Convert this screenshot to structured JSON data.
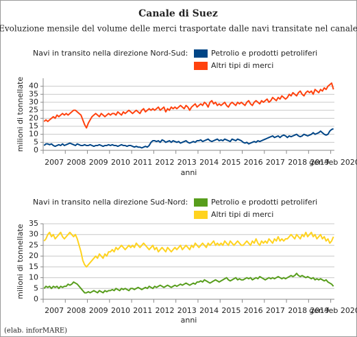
{
  "header": {
    "title": "Canale di Suez",
    "subtitle": "Evoluzione mensile del volume delle merci trasportate dalle navi transitate nel canale",
    "note": "(elab. inforMARE)"
  },
  "chart_data": [
    {
      "type": "line",
      "legend_title": "Navi in transito nella direzione Nord-Sud:",
      "xlabel": "anni",
      "ylabel": "milioni di tonnellate",
      "categories": [
        null,
        null,
        null,
        null,
        null,
        "2007",
        null,
        null,
        null,
        null,
        null,
        null,
        null,
        null,
        null,
        null,
        null,
        "2008",
        null,
        null,
        null,
        null,
        null,
        null,
        null,
        null,
        null,
        null,
        null,
        "2009",
        null,
        null,
        null,
        null,
        null,
        null,
        null,
        null,
        null,
        null,
        null,
        "2010",
        null,
        null,
        null,
        null,
        null,
        null,
        null,
        null,
        null,
        null,
        null,
        "2011",
        null,
        null,
        null,
        null,
        null,
        null,
        null,
        null,
        null,
        null,
        null,
        "2012",
        null,
        null,
        null,
        null,
        null,
        null,
        null,
        null,
        null,
        null,
        null,
        "2013",
        null,
        null,
        null,
        null,
        null,
        null,
        null,
        null,
        null,
        null,
        null,
        "2014",
        null,
        null,
        null,
        null,
        null,
        null,
        null,
        null,
        null,
        null,
        null,
        "2015",
        null,
        null,
        null,
        null,
        null,
        null,
        null,
        null,
        null,
        null,
        null,
        "2016",
        null,
        null,
        null,
        null,
        null,
        null,
        null,
        null,
        null,
        null,
        null,
        "2017",
        null,
        null,
        null,
        null,
        null,
        null,
        null,
        null,
        null,
        null,
        null,
        "2018",
        null,
        null,
        null,
        null,
        null,
        null,
        null,
        null,
        null,
        null,
        null,
        "2019",
        null,
        null,
        null,
        null,
        null,
        null,
        null,
        "gen-feb 2020"
      ],
      "ylim": [
        0,
        45
      ],
      "yticks": [
        0,
        5,
        10,
        15,
        20,
        25,
        30,
        35,
        40
      ],
      "grid": true,
      "series": [
        {
          "name": "Petrolio e prodotti petroliferi",
          "color": "#004586",
          "values": [
            3,
            4,
            4,
            3.5,
            4,
            3,
            2.5,
            3,
            3.5,
            3,
            4,
            3,
            3.5,
            4,
            4.5,
            4,
            3.5,
            3,
            4,
            3.5,
            3,
            3,
            3.5,
            3,
            3,
            3.5,
            3,
            2.5,
            3,
            3,
            3.5,
            3,
            2.5,
            3,
            3,
            3.5,
            3,
            3.5,
            3,
            3,
            2.5,
            3,
            3.5,
            3,
            3,
            2.5,
            3,
            3,
            2.5,
            2,
            2.5,
            2,
            2,
            1.5,
            2,
            2.5,
            2,
            3,
            5,
            6,
            6,
            5.5,
            6,
            5,
            6.5,
            6,
            5,
            5.5,
            6,
            5,
            6,
            5.5,
            5,
            5.5,
            4.5,
            5,
            5.5,
            6,
            5,
            4.5,
            5,
            5.5,
            5,
            6,
            6,
            6.5,
            5.5,
            6,
            6.5,
            7,
            6,
            5.5,
            6,
            6.5,
            7,
            6,
            6.5,
            6,
            7,
            6.5,
            6,
            5.5,
            7,
            6.5,
            6,
            7,
            6.5,
            6,
            5,
            4.5,
            5,
            4,
            4.5,
            5,
            5.5,
            5,
            6,
            5.5,
            6,
            6.5,
            7,
            7.5,
            8,
            8.5,
            9,
            8,
            8.5,
            9,
            8,
            9,
            9.5,
            9,
            8,
            9,
            8.5,
            9,
            9.5,
            10,
            9,
            8.5,
            9,
            10,
            9.5,
            9,
            9.5,
            10,
            11,
            10,
            10.5,
            11,
            12,
            11,
            10,
            9.5,
            10,
            12,
            13,
            13.5
          ]
        },
        {
          "name": "Altri tipi di merci",
          "color": "#ff420e",
          "values": [
            18,
            19,
            18,
            19,
            20,
            21,
            20,
            22,
            21,
            22,
            23,
            22,
            23,
            22,
            23,
            24,
            25,
            25,
            24,
            23,
            22,
            19,
            16,
            14,
            17,
            19,
            21,
            22,
            23,
            22,
            21,
            23,
            22,
            21,
            22,
            23,
            22,
            23,
            23,
            22,
            24,
            23,
            22,
            24,
            23,
            24,
            25,
            24,
            23,
            24,
            25,
            24,
            23,
            25,
            26,
            24,
            25,
            26,
            25,
            26,
            25,
            26,
            27,
            25,
            26,
            27,
            24,
            26,
            25,
            27,
            26,
            27,
            26,
            27,
            28,
            27,
            26,
            28,
            27,
            25,
            27,
            28,
            29,
            27,
            28,
            29,
            28,
            30,
            29,
            27,
            30,
            31,
            29,
            30,
            28,
            29,
            28,
            29,
            30,
            28,
            27,
            29,
            30,
            29,
            28,
            30,
            29,
            30,
            29,
            28,
            30,
            31,
            29,
            28,
            30,
            31,
            30,
            29,
            31,
            30,
            31,
            32,
            30,
            31,
            33,
            32,
            31,
            33,
            32,
            34,
            33,
            32,
            33,
            35,
            34,
            36,
            35,
            34,
            36,
            37,
            35,
            34,
            36,
            37,
            36,
            37,
            35,
            38,
            37,
            36,
            38,
            37,
            39,
            38,
            40,
            41,
            42,
            38
          ]
        }
      ]
    },
    {
      "type": "line",
      "legend_title": "Navi in transito nella direzione Sud-Nord:",
      "xlabel": "anni",
      "ylabel": "milioni di tonnellate",
      "categories": [
        null,
        null,
        null,
        null,
        null,
        "2007",
        null,
        null,
        null,
        null,
        null,
        null,
        null,
        null,
        null,
        null,
        null,
        "2008",
        null,
        null,
        null,
        null,
        null,
        null,
        null,
        null,
        null,
        null,
        null,
        "2009",
        null,
        null,
        null,
        null,
        null,
        null,
        null,
        null,
        null,
        null,
        null,
        "2010",
        null,
        null,
        null,
        null,
        null,
        null,
        null,
        null,
        null,
        null,
        null,
        "2011",
        null,
        null,
        null,
        null,
        null,
        null,
        null,
        null,
        null,
        null,
        null,
        "2012",
        null,
        null,
        null,
        null,
        null,
        null,
        null,
        null,
        null,
        null,
        null,
        "2013",
        null,
        null,
        null,
        null,
        null,
        null,
        null,
        null,
        null,
        null,
        null,
        "2014",
        null,
        null,
        null,
        null,
        null,
        null,
        null,
        null,
        null,
        null,
        null,
        "2015",
        null,
        null,
        null,
        null,
        null,
        null,
        null,
        null,
        null,
        null,
        null,
        "2016",
        null,
        null,
        null,
        null,
        null,
        null,
        null,
        null,
        null,
        null,
        null,
        "2017",
        null,
        null,
        null,
        null,
        null,
        null,
        null,
        null,
        null,
        null,
        null,
        "2018",
        null,
        null,
        null,
        null,
        null,
        null,
        null,
        null,
        null,
        null,
        null,
        "2019",
        null,
        null,
        null,
        null,
        null,
        null,
        null,
        "gen-feb 2020"
      ],
      "ylim": [
        0,
        35
      ],
      "yticks": [
        0,
        5,
        10,
        15,
        20,
        25,
        30,
        35
      ],
      "grid": true,
      "series": [
        {
          "name": "Petrolio e prodotti petroliferi",
          "color": "#579d1c",
          "values": [
            5,
            6,
            5.5,
            6,
            5,
            6,
            5.5,
            6,
            5,
            6,
            5.5,
            6,
            6,
            7,
            6.5,
            7,
            8,
            7.5,
            7,
            6,
            5,
            4,
            3,
            3,
            3.5,
            3,
            3.5,
            4,
            3.5,
            3,
            4,
            3.5,
            3,
            4,
            3.5,
            4,
            4,
            4.5,
            4,
            5,
            4.5,
            4,
            5,
            4.5,
            5,
            4.5,
            4,
            5,
            5,
            4.5,
            5,
            5.5,
            5,
            4.5,
            5,
            5.5,
            5,
            6,
            5.5,
            5,
            6,
            5.5,
            6,
            6.5,
            6,
            5.5,
            6,
            6.5,
            6,
            5.5,
            6,
            6.5,
            6,
            6.5,
            7,
            6.5,
            7,
            7.5,
            7,
            6.5,
            7,
            7.5,
            7,
            8,
            8,
            8.5,
            8,
            9,
            8.5,
            8,
            7.5,
            8,
            8.5,
            9,
            8.5,
            8,
            8.5,
            9,
            9.5,
            10,
            9,
            8.5,
            9,
            9.5,
            10,
            9,
            9.5,
            9,
            9,
            9.5,
            10,
            9.5,
            10,
            9,
            9.5,
            10,
            9.5,
            10.5,
            10,
            9.5,
            9,
            9.5,
            10,
            9.5,
            10,
            9.5,
            10,
            10.5,
            10,
            9.5,
            10,
            9.5,
            10,
            10.5,
            11,
            10.5,
            11,
            12,
            11,
            10.5,
            11,
            10.5,
            10,
            10.5,
            10,
            9.5,
            10,
            9,
            9.5,
            9,
            9.5,
            9,
            8.5,
            9,
            8,
            7.5,
            7,
            6
          ]
        },
        {
          "name": "Altri tipi di merci",
          "color": "#ffd320",
          "values": [
            27,
            28,
            30,
            31,
            29,
            30,
            28,
            29,
            30,
            31,
            29,
            28,
            29,
            30,
            31,
            30,
            29,
            30,
            28,
            25,
            22,
            18,
            16,
            15,
            16,
            17,
            18,
            19,
            20,
            19,
            21,
            20,
            19,
            21,
            20,
            22,
            22,
            23,
            22,
            24,
            23,
            24,
            25,
            24,
            23,
            24,
            25,
            24,
            25,
            24,
            26,
            25,
            24,
            25,
            26,
            25,
            24,
            23,
            24,
            25,
            23,
            24,
            22,
            23,
            24,
            23,
            22,
            24,
            23,
            22,
            23,
            24,
            23,
            24,
            25,
            23,
            24,
            25,
            24,
            23,
            25,
            24,
            26,
            25,
            24,
            25,
            26,
            25,
            24,
            26,
            25,
            26,
            27,
            25,
            26,
            25,
            26,
            25,
            27,
            26,
            25,
            27,
            26,
            25,
            26,
            27,
            26,
            25,
            25,
            26,
            27,
            26,
            25,
            27,
            26,
            28,
            26,
            25,
            27,
            26,
            27,
            26,
            28,
            27,
            26,
            28,
            27,
            29,
            27,
            28,
            27,
            28,
            28,
            29,
            30,
            29,
            28,
            30,
            29,
            28,
            30,
            29,
            31,
            29,
            30,
            31,
            29,
            30,
            28,
            29,
            30,
            28,
            29,
            27,
            28,
            26,
            27,
            29
          ]
        }
      ]
    }
  ]
}
